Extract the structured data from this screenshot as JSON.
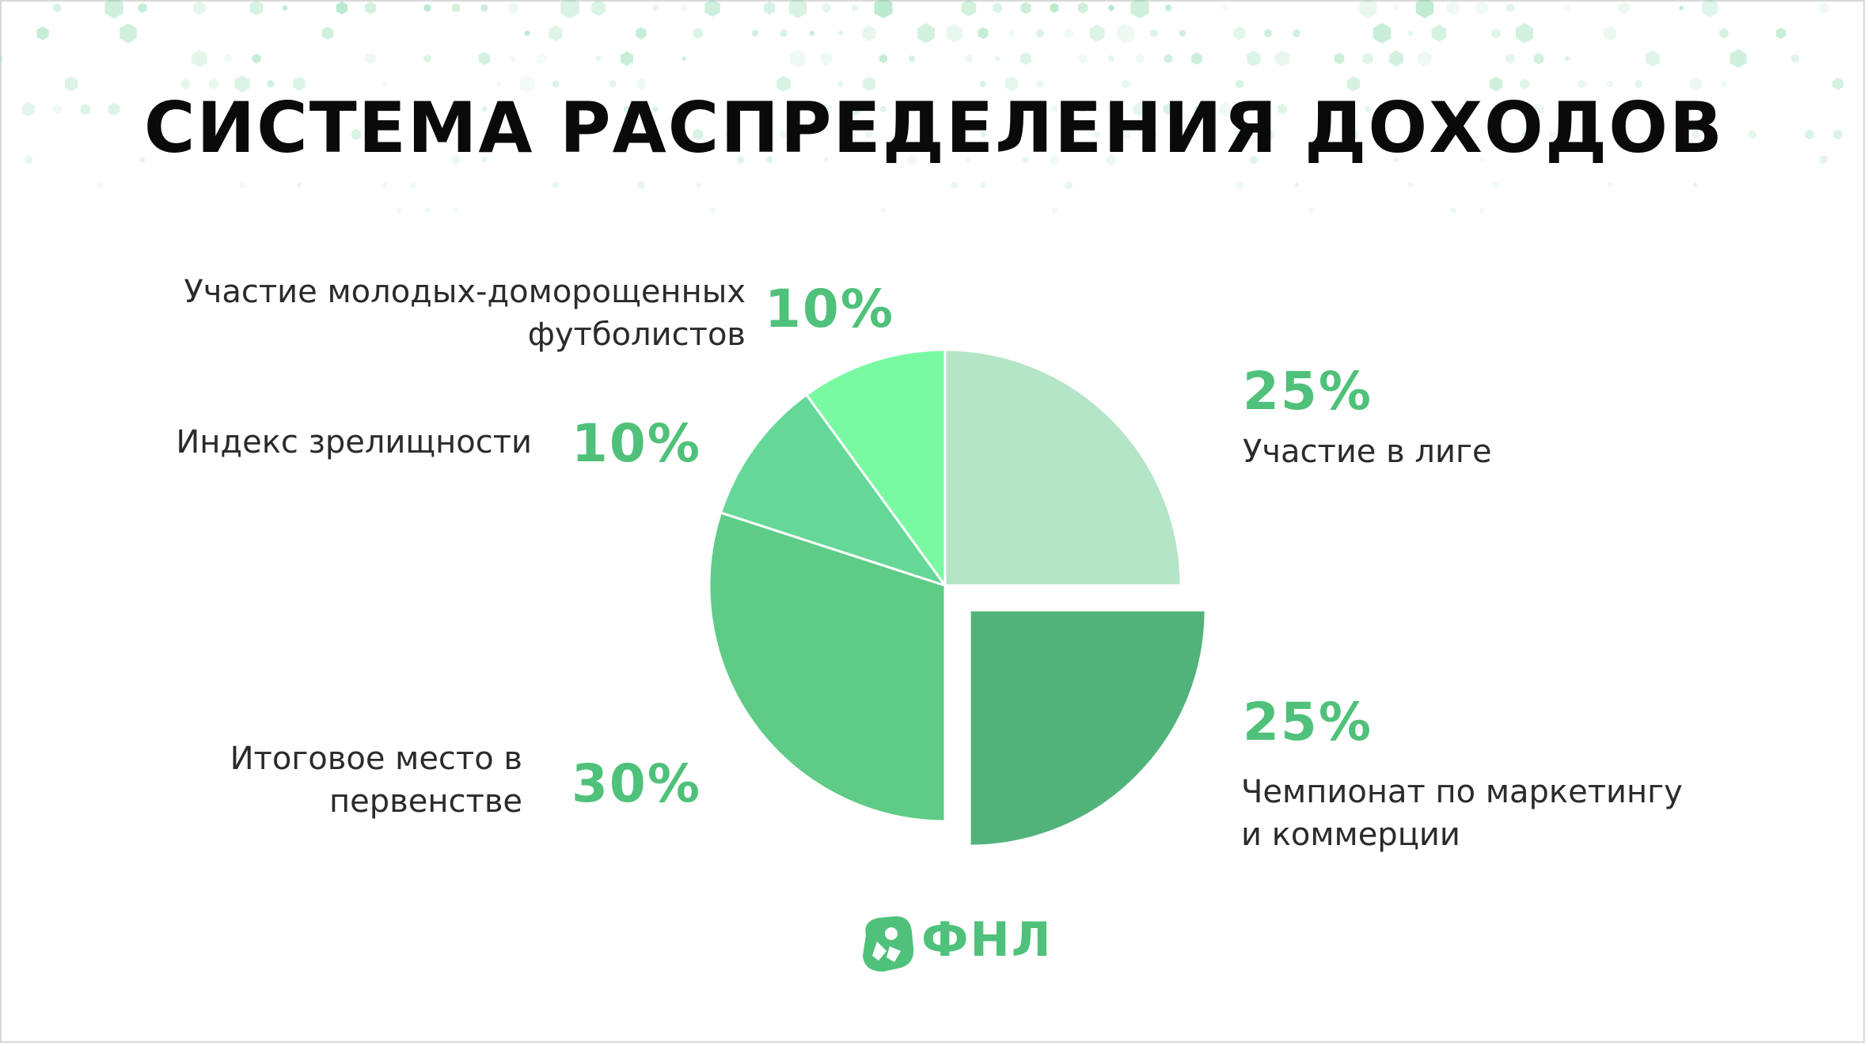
{
  "title": "СИСТЕМА РАСПРЕДЕЛЕНИЯ ДОХОДОВ",
  "logo": {
    "text": "ФНЛ",
    "color": "#4fc17a"
  },
  "colors": {
    "accent": "#4fc17a",
    "slice_league": "#b3e5c6",
    "slice_marketing": "#52b37a",
    "slice_place": "#5ecb87",
    "slice_spectacle": "#65d898",
    "slice_youth": "#7af9a3"
  },
  "chart_data": {
    "type": "pie",
    "slices": [
      {
        "label": "Участие в лиге",
        "percent": "25%",
        "value": 25,
        "color": "#b3e5c6",
        "exploded": false
      },
      {
        "label": "Чемпионат по маркетингу\nи коммерции",
        "percent": "25%",
        "value": 25,
        "color": "#52b37a",
        "exploded": true
      },
      {
        "label": "Итоговое место в\nпервенстве",
        "percent": "30%",
        "value": 30,
        "color": "#5ecb87",
        "exploded": false
      },
      {
        "label": "Индекс зрелищности",
        "percent": "10%",
        "value": 10,
        "color": "#65d898",
        "exploded": false
      },
      {
        "label": "Участие молодых-доморощенных\nфутболистов",
        "percent": "10%",
        "value": 10,
        "color": "#7af9a3",
        "exploded": false
      }
    ]
  }
}
